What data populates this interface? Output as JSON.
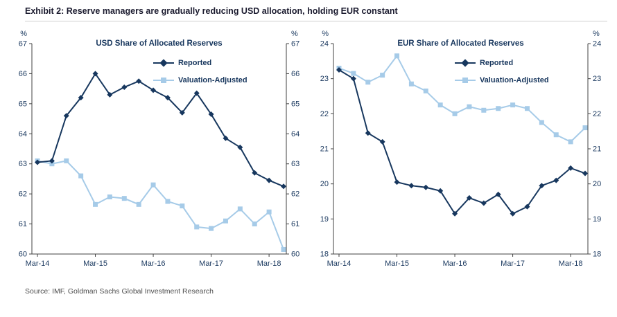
{
  "header": {
    "title": "Exhibit 2: Reserve managers are gradually reducing USD allocation, holding EUR constant"
  },
  "footer": {
    "source": "Source: IMF, Goldman Sachs Global Investment Research"
  },
  "colors": {
    "reported": "#17375e",
    "valuation_adjusted": "#a6cbe8",
    "axis_text": "#17365d",
    "title_text": "#1b1b2f",
    "source_text": "#4d4d4d",
    "axis_line": "#404040"
  },
  "chart_data": [
    {
      "type": "line",
      "title": "USD Share of Allocated Reserves",
      "unit": "%",
      "ylim": [
        60,
        67
      ],
      "ytick_step": 1,
      "grid": false,
      "legend_position": "top-center",
      "x": [
        "Mar-14",
        "Jun-14",
        "Sep-14",
        "Dec-14",
        "Mar-15",
        "Jun-15",
        "Sep-15",
        "Dec-15",
        "Mar-16",
        "Jun-16",
        "Sep-16",
        "Dec-16",
        "Mar-17",
        "Jun-17",
        "Sep-17",
        "Dec-17",
        "Mar-18",
        "Jun-18"
      ],
      "xticks": [
        {
          "index": 0,
          "label": "Mar-14"
        },
        {
          "index": 4,
          "label": "Mar-15"
        },
        {
          "index": 8,
          "label": "Mar-16"
        },
        {
          "index": 12,
          "label": "Mar-17"
        },
        {
          "index": 16,
          "label": "Mar-18"
        }
      ],
      "series": [
        {
          "name": "Reported",
          "marker": "diamond",
          "color_key": "reported",
          "values": [
            63.05,
            63.1,
            64.6,
            65.2,
            66.0,
            65.3,
            65.55,
            65.75,
            65.45,
            65.2,
            64.7,
            65.35,
            64.65,
            63.85,
            63.55,
            62.7,
            62.45,
            62.25
          ]
        },
        {
          "name": "Valuation-Adjusted",
          "marker": "square",
          "color_key": "valuation_adjusted",
          "values": [
            63.1,
            63.0,
            63.1,
            62.6,
            61.65,
            61.9,
            61.85,
            61.65,
            62.3,
            61.75,
            61.6,
            60.9,
            60.85,
            61.1,
            61.5,
            61.0,
            61.4,
            60.15
          ]
        }
      ]
    },
    {
      "type": "line",
      "title": "EUR Share of Allocated Reserves",
      "unit": "%",
      "ylim": [
        18,
        24
      ],
      "ytick_step": 1,
      "grid": false,
      "legend_position": "top-center",
      "x": [
        "Mar-14",
        "Jun-14",
        "Sep-14",
        "Dec-14",
        "Mar-15",
        "Jun-15",
        "Sep-15",
        "Dec-15",
        "Mar-16",
        "Jun-16",
        "Sep-16",
        "Dec-16",
        "Mar-17",
        "Jun-17",
        "Sep-17",
        "Dec-17",
        "Mar-18",
        "Jun-18"
      ],
      "xticks": [
        {
          "index": 0,
          "label": "Mar-14"
        },
        {
          "index": 4,
          "label": "Mar-15"
        },
        {
          "index": 8,
          "label": "Mar-16"
        },
        {
          "index": 12,
          "label": "Mar-17"
        },
        {
          "index": 16,
          "label": "Mar-18"
        }
      ],
      "series": [
        {
          "name": "Reported",
          "marker": "diamond",
          "color_key": "reported",
          "values": [
            23.25,
            23.0,
            21.45,
            21.2,
            20.05,
            19.95,
            19.9,
            19.8,
            19.15,
            19.6,
            19.45,
            19.7,
            19.15,
            19.35,
            19.95,
            20.1,
            20.45,
            20.3
          ]
        },
        {
          "name": "Valuation-Adjusted",
          "marker": "square",
          "color_key": "valuation_adjusted",
          "values": [
            23.3,
            23.15,
            22.9,
            23.1,
            23.65,
            22.85,
            22.65,
            22.25,
            22.0,
            22.2,
            22.1,
            22.15,
            22.25,
            22.15,
            21.75,
            21.4,
            21.2,
            21.6
          ]
        }
      ]
    }
  ]
}
